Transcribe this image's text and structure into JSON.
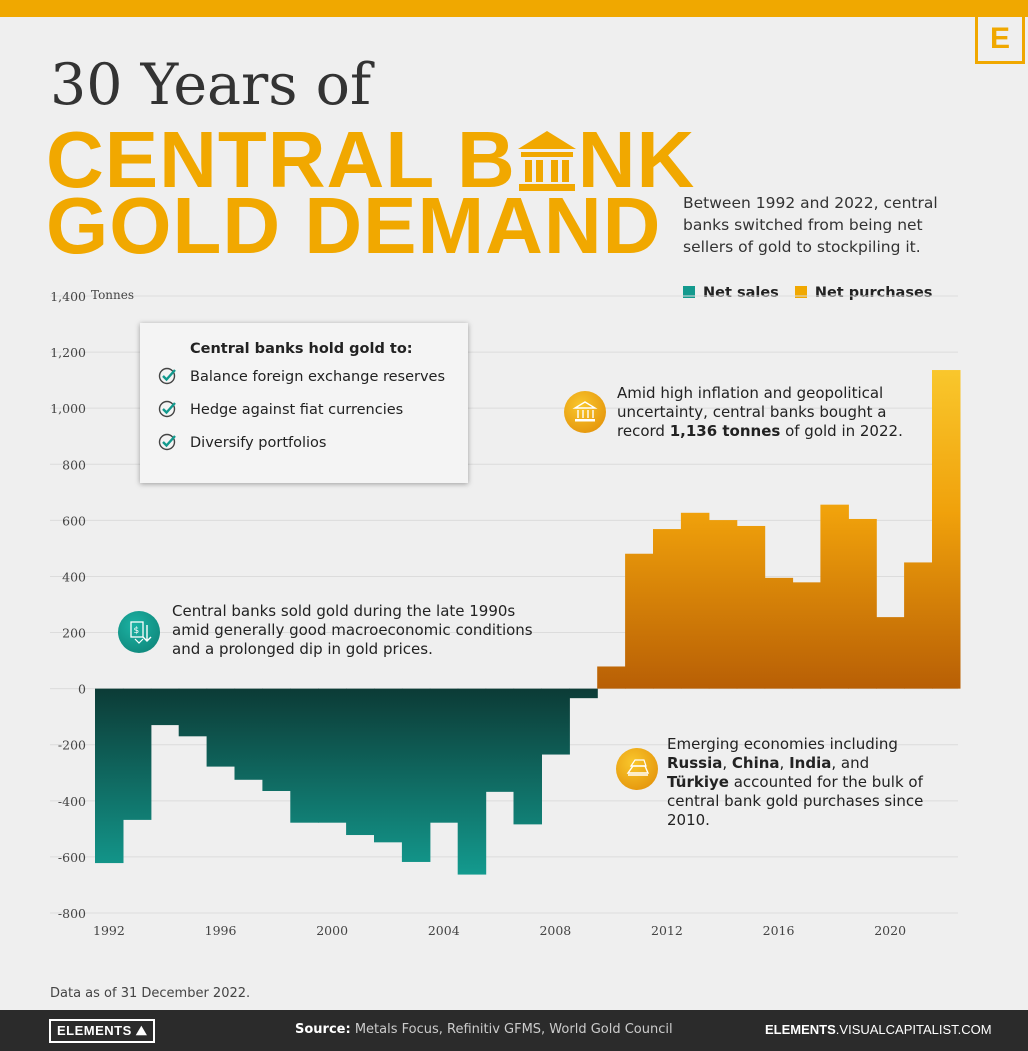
{
  "header": {
    "logo_letter": "E",
    "title_line1": "30 Years of",
    "title_line2_a": "CENTRAL B",
    "title_line2_b": "NK",
    "title_line3": "GOLD DEMAND",
    "subtitle": "Between 1992 and 2022, central banks switched from being net sellers of gold to stockpiling it."
  },
  "legend": {
    "sales": "Net sales",
    "purchases": "Net purchases"
  },
  "infobox": {
    "heading": "Central banks hold gold to:",
    "items": [
      "Balance foreign exchange reserves",
      "Hedge against fiat currencies",
      "Diversify portfolios"
    ]
  },
  "notes": {
    "sold_text": "Central banks sold gold during the late 1990s amid generally good macroeconomic conditions and a prolonged dip in gold prices.",
    "record_pre": "Amid high inflation and geopolitical uncertainty, central banks bought a record ",
    "record_bold": "1,136 tonnes",
    "record_post": " of gold in 2022.",
    "emerging_pre": "Emerging economies including ",
    "emerging_b1": "Russia",
    "emerging_b2": "China",
    "emerging_b3": "India",
    "emerging_and": "and",
    "emerging_b4": "Türkiye",
    "emerging_post": " accounted for the bulk of central bank gold purchases since 2010."
  },
  "footnote": "Data as of 31 December 2022.",
  "footer": {
    "brand": "ELEMENTS",
    "source_label": "Source:",
    "source_text": " Metals Focus, Refinitiv GFMS, World Gold Council",
    "site_bold": "ELEMENTS",
    "site_rest": ".VISUALCAPITALIST.COM"
  },
  "colors": {
    "gold": "#f1a800",
    "teal": "#139a8e",
    "teal_dark": "#0c3b36",
    "orange_dark": "#b85f05",
    "orange_light": "#f9c72c"
  },
  "chart_data": {
    "type": "bar",
    "ylabel": "Tonnes",
    "ylim": [
      -800,
      1400
    ],
    "yticks": [
      -800,
      -600,
      -400,
      -200,
      0,
      200,
      400,
      600,
      800,
      1000,
      1200,
      1400
    ],
    "ytick_labels": [
      "-800",
      "-600",
      "-400",
      "-200",
      "0",
      "200",
      "400",
      "600",
      "800",
      "1,000",
      "1,200",
      "1,400"
    ],
    "xtick_labels": [
      "1992",
      "1996",
      "2000",
      "2004",
      "2008",
      "2012",
      "2016",
      "2020"
    ],
    "grid": true,
    "legend_position": "top-right",
    "years": [
      1992,
      1993,
      1994,
      1995,
      1996,
      1997,
      1998,
      1999,
      2000,
      2001,
      2002,
      2003,
      2004,
      2005,
      2006,
      2007,
      2008,
      2009,
      2010,
      2011,
      2012,
      2013,
      2014,
      2015,
      2016,
      2017,
      2018,
      2019,
      2020,
      2021,
      2022
    ],
    "values": [
      -622,
      -468,
      -130,
      -170,
      -278,
      -325,
      -365,
      -478,
      -478,
      -522,
      -548,
      -618,
      -478,
      -663,
      -368,
      -484,
      -235,
      -34,
      79,
      481,
      569,
      627,
      601,
      580,
      395,
      379,
      656,
      605,
      255,
      450,
      1136
    ],
    "series": [
      {
        "name": "Net sales",
        "color": "teal"
      },
      {
        "name": "Net purchases",
        "color": "orange"
      }
    ]
  }
}
